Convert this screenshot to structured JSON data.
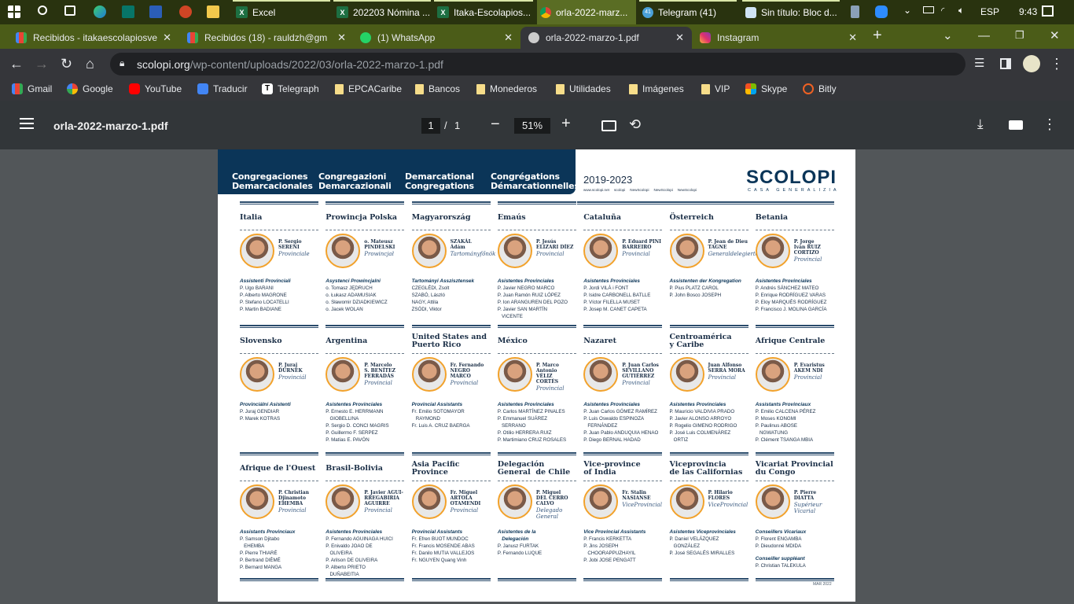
{
  "taskbar": {
    "apps": [
      {
        "label": "Excel",
        "state": "open"
      },
      {
        "label": "202203 Nómina ...",
        "state": "open"
      },
      {
        "label": "Itaka-Escolapios...",
        "state": "open"
      },
      {
        "label": "orla-2022-marz...",
        "state": "active"
      },
      {
        "label": "Telegram (41)",
        "state": "open"
      },
      {
        "label": "Sin título: Bloc d...",
        "state": "open"
      }
    ],
    "telegram_badge": "41",
    "language": "ESP",
    "time": "9:43"
  },
  "tabs": [
    {
      "title": "Recibidos - itakaescolapiosve",
      "icon": "gmail-icon"
    },
    {
      "title": "Recibidos (18) - rauldzh@gm",
      "icon": "gmail-icon"
    },
    {
      "title": "(1) WhatsApp",
      "icon": "whatsapp-icon"
    },
    {
      "title": "orla-2022-marzo-1.pdf",
      "icon": "scolopi-icon",
      "active": true
    },
    {
      "title": "Instagram",
      "icon": "instagram-icon"
    }
  ],
  "address": {
    "host": "scolopi.org",
    "path": "/wp-content/uploads/2022/03/orla-2022-marzo-1.pdf"
  },
  "bookmarks": [
    "Gmail",
    "Google",
    "YouTube",
    "Traducir",
    "Telegraph",
    "EPCACaribe",
    "Bancos",
    "Monederos",
    "Utilidades",
    "Imágenes",
    "VIP",
    "Skype",
    "Bitly"
  ],
  "pdf_toolbar": {
    "filename": "orla-2022-marzo-1.pdf",
    "page": "1",
    "total_pages": "1",
    "separator": "/",
    "zoom": "51%"
  },
  "document": {
    "band_titles": [
      "Congregaciones\nDemarcacionales",
      "Congregazioni\nDemarcazionali",
      "Demarcational\nCongregations",
      "Congrégations\nDémarcationnelles"
    ],
    "years": "2019-2023",
    "social": [
      "www.scolopi.net",
      "scolopi",
      "NewScolopi",
      "NewScolopi",
      "NewScolopi"
    ],
    "logo": "SCOLOPI",
    "logo_sub": "CASA GENERALIZIA",
    "date": "MAR 2022",
    "colors": {
      "navy": "#0b3558",
      "orange": "#f2a22c"
    },
    "cells": [
      {
        "title": "Italia",
        "name": "P. Sergio\nSERENI",
        "role": "Provinciale",
        "groups": [
          {
            "label": "Assistenti Provinciali",
            "items": [
              "P. Ugo BARANI",
              "P. Alberto MAGRONE",
              "P. Stefano LOCATELLI",
              "P. Martin BADIANE"
            ]
          }
        ]
      },
      {
        "title": "Prowincja Polska",
        "name": "o. Mateusz\nPINDELSKI",
        "role": "Prowincjał",
        "groups": [
          {
            "label": "Asystenci Prowincjalni",
            "items": [
              "o. Tomasz JĘDRUCH",
              "o. Łukasz ADAMUSIAK",
              "o. Sławomir DZIADKIEWICZ",
              "o. Jacek WOLAN"
            ]
          }
        ]
      },
      {
        "title": "Magyarország",
        "name": "SZAKÁL\nÁdám",
        "role": "Tartományfőnök",
        "groups": [
          {
            "label": "Tartományi Asszisztensek",
            "items": [
              "CZEGLÉDI, Zsolt",
              "SZABÓ, László",
              "NAGY, Attila",
              "ZSÓDI, Viktor"
            ]
          }
        ]
      },
      {
        "title": "Emaús",
        "name": "P. Jesús\nELIZARI DÍEZ",
        "role": "Provincial",
        "groups": [
          {
            "label": "Asistentes Provinciales",
            "items": [
              "P. Javier NEGRO MARCO",
              "P. Juan Ramón RUIZ LÓPEZ",
              "P. Ion ARANGUREN DEL POZO",
              "P. Javier SAN MARTÍN\n   VICENTE"
            ]
          }
        ]
      },
      {
        "title": "Cataluña",
        "name": "P. Eduard PINI\nBARREIRO",
        "role": "Provincial",
        "groups": [
          {
            "label": "Asistentes Provinciales",
            "items": [
              "P. Jordi VILÀ i FONT",
              "P. Isidre CARBONELL BATLLE",
              "P. Víctor FILELLA MUSET",
              "P. Josep M. CANET CAPETA"
            ]
          }
        ]
      },
      {
        "title": "Österreich",
        "name": "P. Jean de Dieu\nTAGNE",
        "role": "Generaldelegierter",
        "groups": [
          {
            "label": "Assistenten der Kongregation",
            "items": [
              "P. Pius PLATZ CAROL",
              "P. John Bosco JOSEPH"
            ]
          }
        ]
      },
      {
        "title": "Betania",
        "name": "P. Jorge\nIván RUIZ\nCORTIZO",
        "role": "Provincial",
        "groups": [
          {
            "label": "Asistentes Provinciales",
            "items": [
              "P. Andrés SÁNCHEZ MATEO",
              "P. Enrique RODRÍGUEZ VARAS",
              "P. Eloy MARQUÉS RODRÍGUEZ",
              "P. Francisco J. MOLINA GARCÍA"
            ]
          }
        ]
      },
      {
        "title": "Slovensko",
        "name": "P. Juraj\nĎURNEK",
        "role": "Provinciál",
        "groups": [
          {
            "label": "Provinciálni Asistenti",
            "items": [
              "P. Juraj GENDIAR",
              "P. Marek KOTRAS"
            ]
          }
        ]
      },
      {
        "title": "Argentina",
        "name": "P. Marcelo\nS. BENÍTEZ\nFERRADÁS",
        "role": "Provincial",
        "groups": [
          {
            "label": "Asistentes Provinciales",
            "items": [
              "P. Ernesto E. HERRMANN\n   GIOBELLINA",
              "P. Sergio D. CONCI MAGRIS",
              "P. Guillermo F. SERPEZ",
              "P. Matías E. PAVÓN"
            ]
          }
        ]
      },
      {
        "title": "United States and\nPuerto Rico",
        "name": "Fr. Fernando\nNEGRO\nMARCO",
        "role": "Provincial",
        "groups": [
          {
            "label": "Provincial Assistants",
            "items": [
              "Fr. Emilio SOTOMAYOR\n   RAYMOND",
              "Fr. Luis A. CRUZ BAERGA"
            ]
          }
        ]
      },
      {
        "title": "México",
        "name": "P. Marco\nAntonio\nVÉLIZ\nCORTÉS",
        "role": "Provincial",
        "groups": [
          {
            "label": "Asistentes Provinciales",
            "items": [
              "P. Carlos MARTÍNEZ PINALES",
              "P. Emmanuel SUÁREZ\n   SERRANO",
              "P. Otilio HERRERA RUIZ",
              "P. Martimiano CRUZ ROSALES"
            ]
          }
        ]
      },
      {
        "title": "Nazaret",
        "name": "P. Juan Carlos\nSEVILLANO\nGUTIÉRREZ",
        "role": "Provincial",
        "groups": [
          {
            "label": "Asistentes Provinciales",
            "items": [
              "P. Juan Carlos GÓMEZ RAMÍREZ",
              "P. Luis Oswaldo ESPINOZA\n   FERNÁNDEZ",
              "P. Juan Pablo ANDUQUIA HENAO",
              "P. Diego BERNAL HADAD"
            ]
          }
        ]
      },
      {
        "title": "Centroamérica\ny Caribe",
        "name": "Juan Alfonso\nSERRA MORA",
        "role": "Provincial",
        "groups": [
          {
            "label": "Asistentes Provinciales",
            "items": [
              "P. Mauricio VALDIVIA PRADO",
              "P. Javier ALONSO ARROYO",
              "P. Rogelio GIMENO RODRIGO",
              "P. José Luis COLMENÁREZ\n   ORTIZ"
            ]
          }
        ]
      },
      {
        "title": "Afrique Centrale",
        "name": "P. Evaristus\nAKEM NDI",
        "role": "Provincial",
        "groups": [
          {
            "label": "Assistants Provinciaux",
            "items": [
              "P. Emilio CALCENA PÉREZ",
              "P. Moses KONGMI",
              "P. Paulinus ABOSE\n   NGWATUNG",
              "P. Clément TSANGA MBIA"
            ]
          }
        ]
      },
      {
        "title": "Afrique de l'Ouest",
        "name": "P. Christian\nDjinamoto\nEHEMBA",
        "role": "Provincial",
        "groups": [
          {
            "label": "Assistants Provinciaux",
            "items": [
              "P. Samson Djitabo\n   EHEMBA",
              "P. Pierre THIARÉ",
              "P. Bertrand DIÈMÉ",
              "P. Bernard MANGA"
            ]
          }
        ]
      },
      {
        "title": "Brasil-Bolivia",
        "name": "P. Javier AGUI-\nRREGABIRIA\nAGUIRRE",
        "role": "Provincial",
        "groups": [
          {
            "label": "Asistentes Provinciales",
            "items": [
              "P. Fernando AGUINAGA HUICI",
              "P. Enivaldo JOAO DE\n   OLIVEIRA",
              "P. Arilson DE OLIVEIRA",
              "P. Alberto PRIETO\n   DUÑABEITIA"
            ]
          }
        ]
      },
      {
        "title": "Asia Pacific\nProvince",
        "name": "Fr. Miguel\nARTOLA\nOTAMENDI",
        "role": "Provincial",
        "groups": [
          {
            "label": "Provincial Assistants",
            "items": [
              "Fr. Efren BUOT MUNDOC",
              "Fr. Francis MOSENDE ABAS",
              "Fr. Danilo MUTIA VALLEJOS",
              "Fr. NGUYEN Quang Vinh"
            ]
          }
        ]
      },
      {
        "title": "Delegación\nGeneral  de Chile",
        "name": "P. Miguel\nDEL CERRO\nCALVO",
        "role": "Delegado\nGeneral",
        "groups": [
          {
            "label": "Asistentes de la\n   Delegación",
            "items": [
              "P. Janusz FURTAK",
              "P. Fernando LUQUE"
            ]
          }
        ]
      },
      {
        "title": "Vice-province\nof India",
        "name": "Fr. Stalin\nNASIANSE",
        "role": "ViceProvincial",
        "groups": [
          {
            "label": "Vice Provincial Assistants",
            "items": [
              "P. Francis KERKETTA",
              "P. Jins JOSEPH\n   CHOORAPPUZHAYIL",
              "P. Jobi JOSE PENGATT"
            ]
          }
        ]
      },
      {
        "title": "Viceprovincia\nde las Californias",
        "name": "P. Hilario\nFLORES",
        "role": "ViceProvincial",
        "groups": [
          {
            "label": "Asistentes Viceprovinciales",
            "items": [
              "P. Daniel VELÁZQUEZ\n   GONZÁLEZ",
              "P. José SEGALÉS MIRALLES"
            ]
          }
        ]
      },
      {
        "title": "Vicariat Provincial\ndu Congo",
        "name": "P. Pierre\nDIATTA",
        "role": "Supérieur\nVicarial",
        "groups": [
          {
            "label": "Conseillers Vicariaux",
            "items": [
              "P. Florent ENGAMBA",
              "P. Dieudonné MDIDA"
            ]
          },
          {
            "label": "Conseiller suppléant",
            "items": [
              "P. Christian TALEKULA"
            ]
          }
        ]
      }
    ]
  }
}
